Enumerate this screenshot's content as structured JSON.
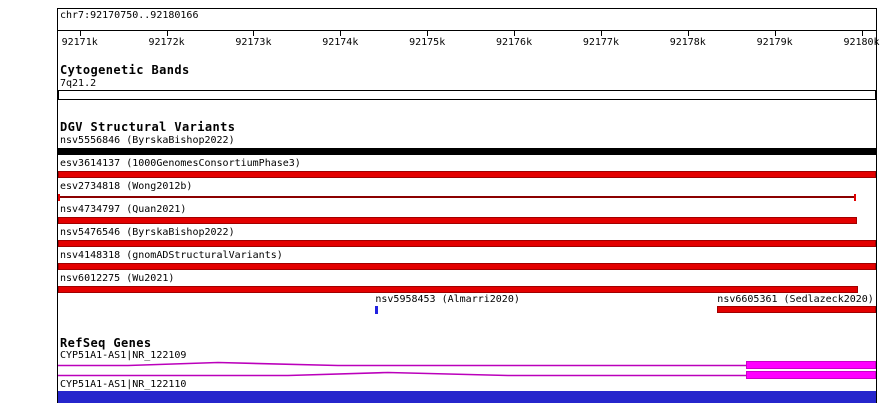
{
  "region": {
    "label": "chr7:92170750..92180166"
  },
  "ruler": {
    "ticks": [
      {
        "label": "92171k",
        "pct": 2.65
      },
      {
        "label": "92172k",
        "pct": 13.27
      },
      {
        "label": "92173k",
        "pct": 23.89
      },
      {
        "label": "92174k",
        "pct": 34.51
      },
      {
        "label": "92175k",
        "pct": 45.13
      },
      {
        "label": "92176k",
        "pct": 55.75
      },
      {
        "label": "92177k",
        "pct": 66.37
      },
      {
        "label": "92178k",
        "pct": 76.99
      },
      {
        "label": "92179k",
        "pct": 87.61
      },
      {
        "label": "92180k",
        "pct": 98.23
      }
    ]
  },
  "cytogenetic": {
    "title": "Cytogenetic Bands",
    "band": "7q21.2"
  },
  "dgv": {
    "title": "DGV Structural Variants",
    "variants": [
      {
        "label": "nsv5556846 (ByrskaBishop2022)",
        "glyph": "bar",
        "color": "#000000",
        "border": "#000000",
        "start_pct": 0,
        "end_pct": 100
      },
      {
        "label": "esv3614137 (1000GenomesConsortiumPhase3)",
        "glyph": "bar",
        "color": "#e30000",
        "border": "#a00000",
        "start_pct": 0,
        "end_pct": 100
      },
      {
        "label": "esv2734818 (Wong2012b)",
        "glyph": "thin",
        "color": "#e30000",
        "line_color": "#8b0000",
        "start_pct": 0,
        "end_pct": 97.5
      },
      {
        "label": "nsv4734797 (Quan2021)",
        "glyph": "bar",
        "color": "#e30000",
        "border": "#a00000",
        "start_pct": 0,
        "end_pct": 97.7
      },
      {
        "label": "nsv5476546 (ByrskaBishop2022)",
        "glyph": "bar",
        "color": "#e30000",
        "border": "#a00000",
        "start_pct": 0,
        "end_pct": 100
      },
      {
        "label": "nsv4148318 (gnomADStructuralVariants)",
        "glyph": "bar",
        "color": "#e30000",
        "border": "#a00000",
        "start_pct": 0,
        "end_pct": 100
      },
      {
        "label": "nsv6012275 (Wu2021)",
        "glyph": "bar",
        "color": "#e30000",
        "border": "#a00000",
        "start_pct": 0,
        "end_pct": 97.8
      }
    ],
    "floating": [
      {
        "label": "nsv5958453 (Almarri2020)",
        "label_pct": 38.8,
        "glyph": "tick",
        "color": "#2222e0",
        "start_pct": 38.8
      },
      {
        "label": "nsv6605361 (Sedlazeck2020)",
        "label_pct": 80.6,
        "glyph": "bar",
        "color": "#e30000",
        "border": "#a00000",
        "start_pct": 80.6,
        "end_pct": 100
      }
    ]
  },
  "refseq": {
    "title": "RefSeq Genes",
    "genes": [
      {
        "label": "CYP51A1-AS1|NR_122109",
        "line_color": "#bb00bb",
        "exon_color": "#ff00ff",
        "exon_border": "#cc00cc",
        "exon_start_pct": 84.1,
        "exon_end_pct": 100
      },
      {
        "label": "CYP51A1-AS1|NR_122110",
        "line_color": "#bb00bb",
        "exon_color": "#ff00ff",
        "exon_border": "#cc00cc",
        "exon_start_pct": 84.1,
        "exon_end_pct": 100
      }
    ]
  },
  "colors": {
    "variant_red": "#e30000",
    "variant_red_border": "#a00000",
    "variant_black": "#000000",
    "thin_line_dark_red": "#8b0000",
    "point_blue": "#2222e0",
    "exon_magenta": "#ff00ff",
    "gene_line_purple": "#bb00bb",
    "bottom_bar": "#2626cc"
  }
}
